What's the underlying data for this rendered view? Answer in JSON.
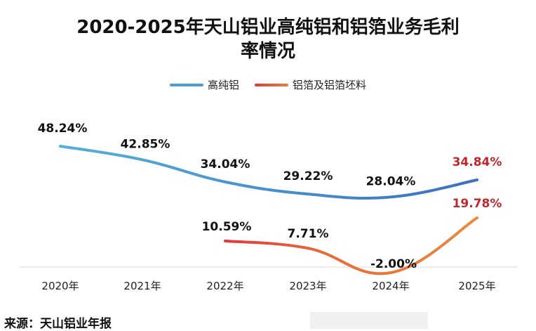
{
  "title_line1": "2020-2025年天山铝业高纯铝和铝箔业务毛利",
  "title_line2": "率情况",
  "source": "来源：天山铝业年报",
  "chart_data": {
    "type": "line",
    "categories": [
      "2020年",
      "2021年",
      "2022年",
      "2023年",
      "2024年",
      "2025年"
    ],
    "series": [
      {
        "name": "高纯铝",
        "values": [
          48.24,
          42.85,
          34.04,
          29.22,
          28.04,
          34.84
        ],
        "labels": [
          "48.24%",
          "42.85%",
          "34.04%",
          "29.22%",
          "28.04%",
          "34.84%"
        ],
        "color": "#4a9fd0"
      },
      {
        "name": "铝箔及铝箔坯料",
        "values": [
          null,
          null,
          10.59,
          7.71,
          -2.0,
          19.78
        ],
        "labels": [
          "",
          "",
          "10.59%",
          "7.71%",
          "-2.00%",
          "19.78%"
        ],
        "color": "#e8803a"
      }
    ],
    "highlight_color": "#c0272d",
    "ylim": [
      -2,
      50
    ],
    "grid": false,
    "legend_position": "top-center"
  }
}
